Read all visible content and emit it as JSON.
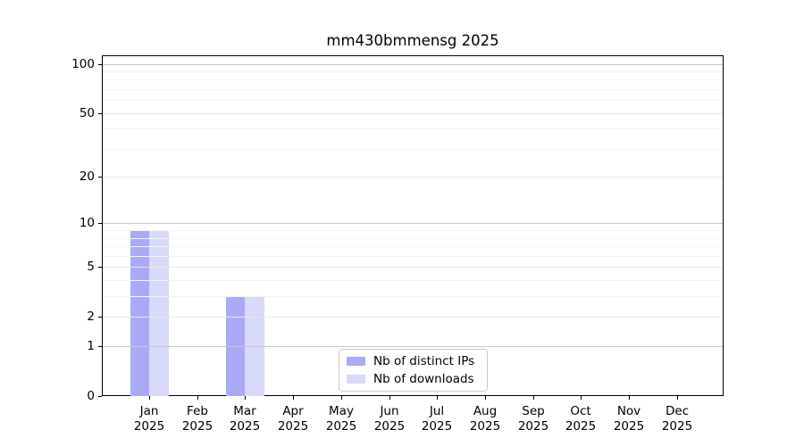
{
  "title": "mm430bmmensg 2025",
  "chart_data": {
    "type": "bar",
    "title": "mm430bmmensg 2025",
    "categories": [
      "Jan 2025",
      "Feb 2025",
      "Mar 2025",
      "Apr 2025",
      "May 2025",
      "Jun 2025",
      "Jul 2025",
      "Aug 2025",
      "Sep 2025",
      "Oct 2025",
      "Nov 2025",
      "Dec 2025"
    ],
    "months": [
      "Jan",
      "Feb",
      "Mar",
      "Apr",
      "May",
      "Jun",
      "Jul",
      "Aug",
      "Sep",
      "Oct",
      "Nov",
      "Dec"
    ],
    "year_label": "2025",
    "series": [
      {
        "name": "Nb of distinct IPs",
        "color": "#a9a9f7",
        "values": [
          9,
          0,
          3,
          0,
          0,
          0,
          0,
          0,
          0,
          0,
          0,
          0
        ]
      },
      {
        "name": "Nb of downloads",
        "color": "#d9d9f9",
        "values": [
          9,
          0,
          3,
          0,
          0,
          0,
          0,
          0,
          0,
          0,
          0,
          0
        ]
      }
    ],
    "y_axis": {
      "scale": "log1p",
      "tick_values": [
        0,
        1,
        2,
        5,
        10,
        20,
        50,
        100
      ],
      "tick_labels": [
        "0",
        "1",
        "2",
        "5",
        "10",
        "20",
        "50",
        "100"
      ],
      "ylim": [
        0,
        113
      ],
      "major_grid_values": [
        1,
        10,
        100
      ],
      "mid_grid_values": [
        2,
        5,
        20,
        50
      ],
      "minor_grid_values": [
        3,
        4,
        6,
        7,
        8,
        9,
        30,
        40,
        60,
        70,
        80,
        90
      ]
    },
    "grid": "both",
    "legend_position": "lower center inside",
    "colors": {
      "major_grid": "#c9c9c9",
      "mid_grid": "#e7e7e7",
      "minor_grid": "#f3f3f3",
      "spine": "#000000",
      "text": "#000000"
    }
  }
}
